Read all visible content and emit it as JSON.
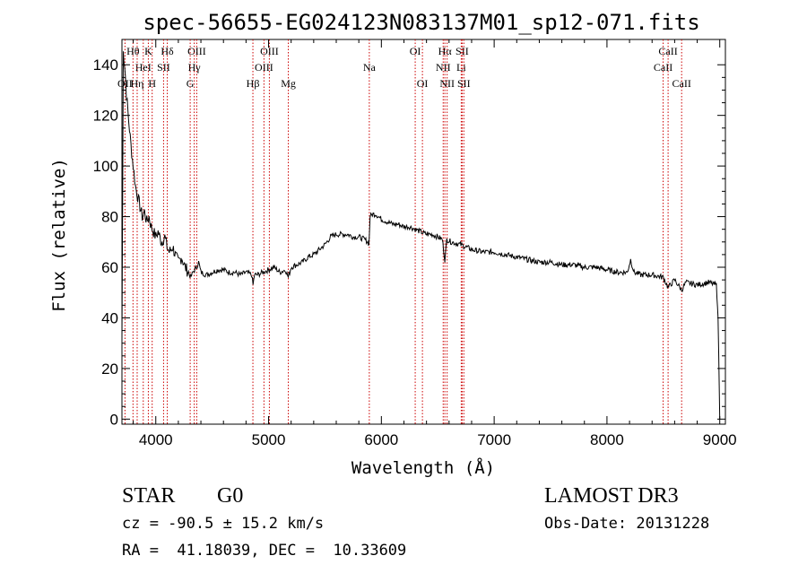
{
  "chart_data": {
    "type": "line",
    "title": "spec-56655-EG024123N083137M01_sp12-071.fits",
    "xlabel": "Wavelength (Å)",
    "ylabel": "Flux (relative)",
    "xlim": [
      3700,
      9050
    ],
    "ylim": [
      -2,
      150
    ],
    "x_ticks": [
      4000,
      5000,
      6000,
      7000,
      8000,
      9000
    ],
    "y_ticks": [
      0,
      20,
      40,
      60,
      80,
      100,
      120,
      140
    ],
    "grid": false,
    "series": [
      {
        "color": "#000000",
        "points": [
          [
            3700,
            32
          ],
          [
            3712,
            145
          ],
          [
            3725,
            140
          ],
          [
            3740,
            128
          ],
          [
            3760,
            118
          ],
          [
            3780,
            108
          ],
          [
            3800,
            100
          ],
          [
            3820,
            92
          ],
          [
            3840,
            88
          ],
          [
            3860,
            84
          ],
          [
            3880,
            80
          ],
          [
            3900,
            82
          ],
          [
            3920,
            78
          ],
          [
            3940,
            80
          ],
          [
            3960,
            76
          ],
          [
            3980,
            74
          ],
          [
            4000,
            72
          ],
          [
            4020,
            74
          ],
          [
            4050,
            70
          ],
          [
            4080,
            72
          ],
          [
            4100,
            68
          ],
          [
            4120,
            66
          ],
          [
            4150,
            68
          ],
          [
            4180,
            64
          ],
          [
            4200,
            62
          ],
          [
            4230,
            64
          ],
          [
            4260,
            60
          ],
          [
            4290,
            58
          ],
          [
            4310,
            56
          ],
          [
            4330,
            58
          ],
          [
            4360,
            60
          ],
          [
            4380,
            62
          ],
          [
            4400,
            58
          ],
          [
            4450,
            57
          ],
          [
            4500,
            58
          ],
          [
            4550,
            59
          ],
          [
            4600,
            59
          ],
          [
            4650,
            58
          ],
          [
            4700,
            58
          ],
          [
            4750,
            57
          ],
          [
            4800,
            58
          ],
          [
            4850,
            57
          ],
          [
            4862,
            53
          ],
          [
            4875,
            57
          ],
          [
            4900,
            57
          ],
          [
            4950,
            58
          ],
          [
            5000,
            59
          ],
          [
            5050,
            60
          ],
          [
            5100,
            58
          ],
          [
            5150,
            59
          ],
          [
            5175,
            56
          ],
          [
            5200,
            60
          ],
          [
            5250,
            61
          ],
          [
            5300,
            62
          ],
          [
            5350,
            64
          ],
          [
            5400,
            65
          ],
          [
            5450,
            67
          ],
          [
            5500,
            69
          ],
          [
            5550,
            72
          ],
          [
            5600,
            73
          ],
          [
            5650,
            73
          ],
          [
            5700,
            73
          ],
          [
            5750,
            72
          ],
          [
            5800,
            72
          ],
          [
            5850,
            71
          ],
          [
            5880,
            70
          ],
          [
            5890,
            69
          ],
          [
            5900,
            80
          ],
          [
            5920,
            81
          ],
          [
            5950,
            81
          ],
          [
            6000,
            79
          ],
          [
            6050,
            78
          ],
          [
            6100,
            77
          ],
          [
            6150,
            77
          ],
          [
            6200,
            76
          ],
          [
            6250,
            76
          ],
          [
            6300,
            75
          ],
          [
            6350,
            74
          ],
          [
            6400,
            73
          ],
          [
            6450,
            73
          ],
          [
            6500,
            72
          ],
          [
            6540,
            71
          ],
          [
            6563,
            63
          ],
          [
            6580,
            71
          ],
          [
            6620,
            70
          ],
          [
            6700,
            69
          ],
          [
            6800,
            67
          ],
          [
            6900,
            66
          ],
          [
            7000,
            66
          ],
          [
            7100,
            65
          ],
          [
            7200,
            64
          ],
          [
            7300,
            63
          ],
          [
            7400,
            62
          ],
          [
            7500,
            62
          ],
          [
            7600,
            61
          ],
          [
            7700,
            61
          ],
          [
            7800,
            60
          ],
          [
            7900,
            60
          ],
          [
            8000,
            59
          ],
          [
            8100,
            58
          ],
          [
            8180,
            58
          ],
          [
            8210,
            63
          ],
          [
            8240,
            58
          ],
          [
            8300,
            57
          ],
          [
            8400,
            57
          ],
          [
            8500,
            56
          ],
          [
            8542,
            52
          ],
          [
            8600,
            55
          ],
          [
            8662,
            51
          ],
          [
            8700,
            54
          ],
          [
            8800,
            53
          ],
          [
            8900,
            54
          ],
          [
            8970,
            53
          ],
          [
            8985,
            40
          ],
          [
            9000,
            0
          ]
        ]
      }
    ],
    "spectral_lines": [
      {
        "label": "Hθ",
        "x": 3798,
        "row": 0
      },
      {
        "label": "OII",
        "x": 3727,
        "row": 2
      },
      {
        "label": "HeI",
        "x": 3889,
        "row": 1
      },
      {
        "label": "K",
        "x": 3934,
        "row": 0
      },
      {
        "label": "Hη",
        "x": 3835,
        "row": 2
      },
      {
        "label": "SII",
        "x": 4069,
        "row": 1
      },
      {
        "label": "H",
        "x": 3968,
        "row": 2
      },
      {
        "label": "Hδ",
        "x": 4102,
        "row": 0
      },
      {
        "label": "OIII",
        "x": 4363,
        "row": 0
      },
      {
        "label": "Hγ",
        "x": 4341,
        "row": 1
      },
      {
        "label": "G",
        "x": 4305,
        "row": 2
      },
      {
        "label": "Hβ",
        "x": 4861,
        "row": 2
      },
      {
        "label": "OIII",
        "x": 5007,
        "row": 0
      },
      {
        "label": "OIII",
        "x": 4959,
        "row": 1
      },
      {
        "label": "Mg",
        "x": 5175,
        "row": 2
      },
      {
        "label": "Na",
        "x": 5893,
        "row": 1
      },
      {
        "label": "OI",
        "x": 6300,
        "row": 0
      },
      {
        "label": "OI",
        "x": 6364,
        "row": 2
      },
      {
        "label": "Hα",
        "x": 6563,
        "row": 0
      },
      {
        "label": "SII",
        "x": 6716,
        "row": 0
      },
      {
        "label": "NII",
        "x": 6548,
        "row": 1
      },
      {
        "label": "Li",
        "x": 6708,
        "row": 1
      },
      {
        "label": "NII",
        "x": 6583,
        "row": 2
      },
      {
        "label": "SII",
        "x": 6731,
        "row": 2
      },
      {
        "label": "CaII",
        "x": 8542,
        "row": 0
      },
      {
        "label": "CaII",
        "x": 8498,
        "row": 1
      },
      {
        "label": "CaII",
        "x": 8662,
        "row": 2
      }
    ],
    "line_color": "#cc0000"
  },
  "info": {
    "star_type": "STAR",
    "subclass": "G0",
    "survey": "LAMOST DR3",
    "cz": "cz = -90.5 ± 15.2 km/s",
    "obs_date": "Obs-Date: 20131228",
    "coords": "RA =  41.18039, DEC =  10.33609"
  }
}
